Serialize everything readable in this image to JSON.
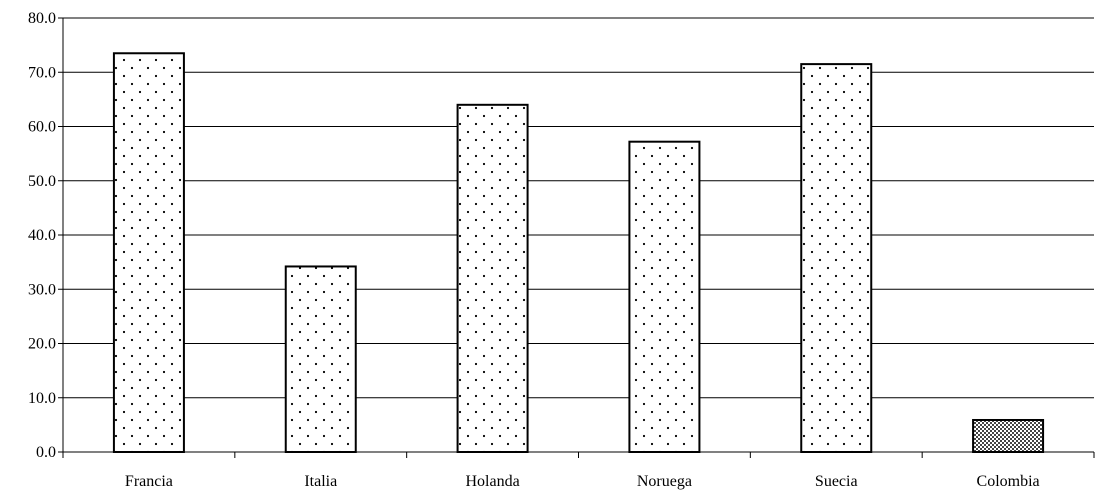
{
  "chart_data": {
    "type": "bar",
    "title": "",
    "xlabel": "",
    "ylabel": "",
    "categories": [
      "Francia",
      "Italia",
      "Holanda",
      "Noruega",
      "Suecia",
      "Colombia"
    ],
    "values": [
      73.5,
      34.2,
      64.0,
      57.2,
      71.5,
      5.9
    ],
    "ylim": [
      0,
      80
    ],
    "yticks": [
      "0.0",
      "10.0",
      "20.0",
      "30.0",
      "40.0",
      "50.0",
      "60.0",
      "70.0",
      "80.0"
    ],
    "grid": true,
    "legend": "none",
    "bar_styles": [
      "dotted",
      "dotted",
      "dotted",
      "dotted",
      "dotted",
      "crosshatch"
    ],
    "colors": {
      "bar_fill": "#ffffff",
      "bar_dots": "#000000",
      "bar_stroke": "#000000",
      "highlight_fill": "#9a9a9a",
      "gridline": "#000000",
      "axis": "#000000"
    }
  }
}
